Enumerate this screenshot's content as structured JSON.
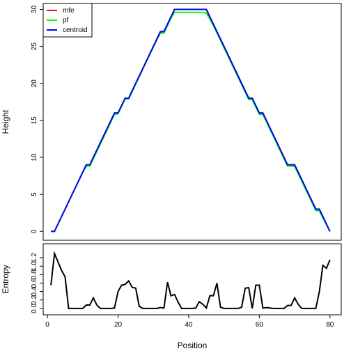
{
  "chart_data": [
    {
      "type": "line",
      "ylabel": "Height",
      "x": [
        1,
        2,
        3,
        4,
        5,
        6,
        7,
        8,
        9,
        10,
        11,
        12,
        13,
        14,
        15,
        16,
        17,
        18,
        19,
        20,
        21,
        22,
        23,
        24,
        25,
        26,
        27,
        28,
        29,
        30,
        31,
        32,
        33,
        34,
        35,
        36,
        37,
        38,
        39,
        40,
        41,
        42,
        43,
        44,
        45,
        46,
        47,
        48,
        49,
        50,
        51,
        52,
        53,
        54,
        55,
        56,
        57,
        58,
        59,
        60,
        61,
        62,
        63,
        64,
        65,
        66,
        67,
        68,
        69,
        70,
        71,
        72,
        73,
        74,
        75,
        76,
        77,
        78,
        79,
        80
      ],
      "series": [
        {
          "name": "mfe",
          "color": "#ff0000",
          "values": [
            0,
            0,
            1,
            2,
            3,
            4,
            5,
            6,
            7,
            8,
            9,
            9,
            10,
            11,
            12,
            13,
            14,
            15,
            16,
            16,
            17,
            18,
            18,
            19,
            20,
            21,
            22,
            23,
            24,
            25,
            26,
            27,
            27,
            28,
            29,
            30,
            30,
            30,
            30,
            30,
            30,
            30,
            30,
            30,
            30,
            29,
            28,
            27,
            26,
            25,
            24,
            23,
            22,
            21,
            20,
            19,
            18,
            18,
            17,
            16,
            16,
            15,
            14,
            13,
            12,
            11,
            10,
            9,
            9,
            9,
            8,
            7,
            6,
            5,
            4,
            3,
            3,
            2,
            1,
            0
          ]
        },
        {
          "name": "pf",
          "color": "#00ff00",
          "values": [
            0,
            0,
            1,
            2,
            3,
            4,
            5,
            6,
            7,
            8,
            8.8,
            8.8,
            9.8,
            10.8,
            11.8,
            12.8,
            13.8,
            14.8,
            15.8,
            15.9,
            16.9,
            17.9,
            17.9,
            18.9,
            19.9,
            20.9,
            21.9,
            22.9,
            23.9,
            24.9,
            25.9,
            26.8,
            26.8,
            27.8,
            28.8,
            29.6,
            29.6,
            29.6,
            29.6,
            29.6,
            29.6,
            29.6,
            29.6,
            29.6,
            29.5,
            28.7,
            27.8,
            26.8,
            25.8,
            24.8,
            23.8,
            22.8,
            21.8,
            20.8,
            19.8,
            18.8,
            17.8,
            17.8,
            16.8,
            15.8,
            15.8,
            14.8,
            13.8,
            12.8,
            11.8,
            10.8,
            9.8,
            8.8,
            8.8,
            8.8,
            7.8,
            6.8,
            5.8,
            4.8,
            3.8,
            2.8,
            2.8,
            1.8,
            0.9,
            0
          ]
        },
        {
          "name": "centroid",
          "color": "#0000ff",
          "values": [
            0,
            0,
            1,
            2,
            3,
            4,
            5,
            6,
            7,
            8,
            9,
            9,
            10,
            11,
            12,
            13,
            14,
            15,
            16,
            16,
            17,
            18,
            18,
            19,
            20,
            21,
            22,
            23,
            24,
            25,
            26,
            27,
            27,
            28,
            29,
            30,
            30,
            30,
            30,
            30,
            30,
            30,
            30,
            30,
            30,
            29,
            28,
            27,
            26,
            25,
            24,
            23,
            22,
            21,
            20,
            19,
            18,
            18,
            17,
            16,
            16,
            15,
            14,
            13,
            12,
            11,
            10,
            9,
            9,
            9,
            8,
            7,
            6,
            5,
            4,
            3,
            3,
            2,
            1,
            0
          ]
        }
      ],
      "xlim": [
        -1.2,
        83.2
      ],
      "ylim": [
        -1.2,
        30.8
      ],
      "yticks": [
        0,
        5,
        10,
        15,
        20,
        25,
        30
      ],
      "legend": "top-left"
    },
    {
      "type": "line",
      "xlabel": "Position",
      "ylabel": "Entropy",
      "x": [
        1,
        2,
        3,
        4,
        5,
        6,
        7,
        8,
        9,
        10,
        11,
        12,
        13,
        14,
        15,
        16,
        17,
        18,
        19,
        20,
        21,
        22,
        23,
        24,
        25,
        26,
        27,
        28,
        29,
        30,
        31,
        32,
        33,
        34,
        35,
        36,
        37,
        38,
        39,
        40,
        41,
        42,
        43,
        44,
        45,
        46,
        47,
        48,
        49,
        50,
        51,
        52,
        53,
        54,
        55,
        56,
        57,
        58,
        59,
        60,
        61,
        62,
        63,
        64,
        65,
        66,
        67,
        68,
        69,
        70,
        71,
        72,
        73,
        74,
        75,
        76,
        77,
        78,
        79,
        80
      ],
      "series": [
        {
          "color": "#000000",
          "values": [
            0.55,
            1.3,
            1.1,
            0.9,
            0.75,
            0,
            0,
            0,
            0,
            0,
            0.08,
            0.08,
            0.25,
            0.08,
            0,
            0,
            0,
            0,
            0.01,
            0.4,
            0.55,
            0.57,
            0.65,
            0.5,
            0.48,
            0.05,
            0,
            0,
            0,
            0,
            0,
            0.02,
            0.01,
            0.62,
            0.3,
            0.33,
            0.15,
            0,
            0,
            0,
            0,
            0.01,
            0.16,
            0.1,
            0.01,
            0.3,
            0.3,
            0.6,
            0.03,
            0,
            0,
            0,
            0,
            0,
            0.03,
            0.48,
            0.49,
            0,
            0.55,
            0.55,
            0.01,
            0.02,
            0.01,
            0,
            0,
            0,
            0,
            0.07,
            0.07,
            0.25,
            0.1,
            0,
            0,
            0,
            0,
            0,
            0.4,
            1.02,
            0.95,
            1.15
          ]
        }
      ],
      "xlim": [
        -1.2,
        83.2
      ],
      "ylim": [
        -0.15,
        1.53
      ],
      "xticks": [
        0,
        20,
        40,
        60,
        80
      ],
      "yticks": [
        {
          "value": 0,
          "label": "0.0"
        },
        {
          "value": 0.2,
          "label": "0.2"
        },
        {
          "value": 0.4,
          "label": "0.4"
        },
        {
          "value": 0.6,
          "label": "0.6"
        },
        {
          "value": 0.8,
          "label": "0.8"
        },
        {
          "value": 1,
          "label": "1.0"
        },
        {
          "value": 1.2,
          "label": "1.2"
        }
      ]
    }
  ]
}
